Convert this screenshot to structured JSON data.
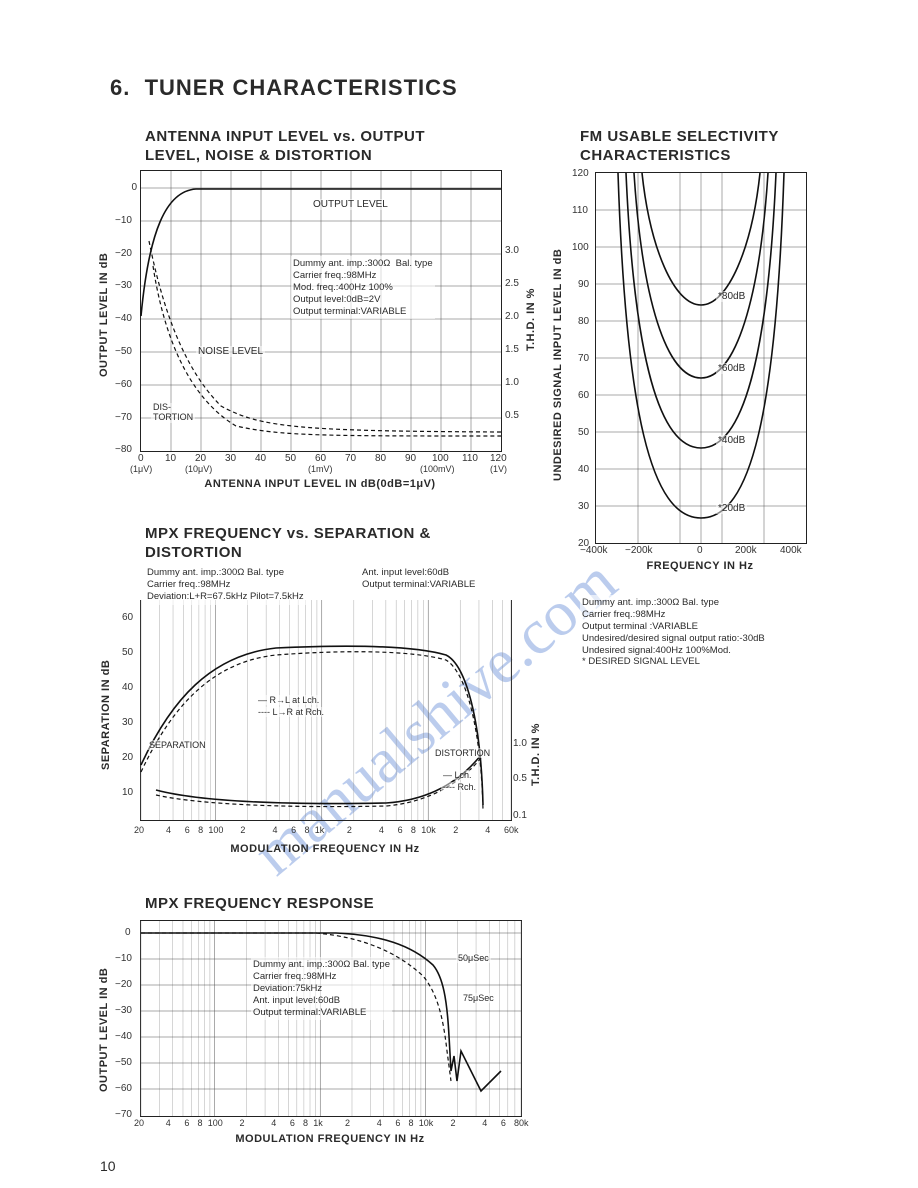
{
  "section": {
    "number": "6.",
    "title": "TUNER CHARACTERISTICS"
  },
  "page_number": "10",
  "watermark": "manualshive.com",
  "chart1": {
    "title1": "ANTENNA INPUT LEVEL vs. OUTPUT",
    "title2": "LEVEL, NOISE & DISTORTION",
    "y_label_left": "OUTPUT LEVEL IN dB",
    "y_label_right": "T.H.D. IN %",
    "x_label": "ANTENNA INPUT LEVEL IN dB(0dB=1μV)",
    "y_ticks_left": [
      "0",
      "−10",
      "−20",
      "−30",
      "−40",
      "−50",
      "−60",
      "−70",
      "−80"
    ],
    "y_ticks_right": [
      "3.0",
      "2.5",
      "2.0",
      "1.5",
      "1.0",
      "0.5"
    ],
    "x_ticks": [
      "0",
      "10",
      "20",
      "30",
      "40",
      "50",
      "60",
      "70",
      "80",
      "90",
      "100",
      "110",
      "120"
    ],
    "x_sub": [
      "(1μV)",
      "(10μV)",
      "(1mV)",
      "(100mV)",
      "(1V)"
    ],
    "label_output": "OUTPUT LEVEL",
    "label_noise": "NOISE LEVEL",
    "label_dist": "DIS-\nTORTION",
    "info": "Dummy ant. imp.:300Ω  Bal. type\nCarrier freq.:98MHz\nMod. freq.:400Hz 100%\nOutput level:0dB=2V\nOutput terminal:VARIABLE"
  },
  "chart2": {
    "title1": "FM USABLE SELECTIVITY",
    "title2": "CHARACTERISTICS",
    "y_label": "UNDESIRED SIGNAL INPUT LEVEL IN dB",
    "x_label": "FREQUENCY IN Hz",
    "y_ticks": [
      "120",
      "110",
      "100",
      "90",
      "80",
      "70",
      "60",
      "50",
      "40",
      "30",
      "20"
    ],
    "x_ticks": [
      "−400k",
      "−200k",
      "0",
      "200k",
      "400k"
    ],
    "curve_labels": [
      "*80dB",
      "*60dB",
      "*40dB",
      "*20dB"
    ],
    "info": "Dummy ant. imp.:300Ω Bal. type\nCarrier freq.:98MHz\nOutput terminal :VARIABLE\nUndesired/desired signal output ratio:-30dB\nUndesired signal:400Hz 100%Mod.\n* DESIRED SIGNAL LEVEL"
  },
  "chart3": {
    "title1": "MPX FREQUENCY vs. SEPARATION &",
    "title2": "DISTORTION",
    "y_label_left": "SEPARATION IN dB",
    "y_label_right": "T.H.D. IN %",
    "x_label": "MODULATION FREQUENCY IN Hz",
    "y_ticks_left": [
      "60",
      "50",
      "40",
      "30",
      "20",
      "10"
    ],
    "y_ticks_right": [
      "1.0",
      "0.5",
      "0.1"
    ],
    "x_ticks_decades": [
      20,
      100,
      1000,
      10000,
      60000
    ],
    "x_tick_labels": [
      "20",
      "4",
      "6",
      "8",
      "100",
      "2",
      "4",
      "6",
      "8",
      "1k",
      "2",
      "4",
      "6",
      "8",
      "10k",
      "2",
      "4",
      "60k"
    ],
    "label_sep": "SEPARATION",
    "label_dist": "DISTORTION",
    "label_rl": "R→L at Lch.",
    "label_lr": "L→R at Rch.",
    "label_lch": "Lch.",
    "label_rch": "Rch.",
    "info_left": "Dummy ant. imp.:300Ω Bal. type\nCarrier freq.:98MHz\nDeviation:L+R=67.5kHz Pilot=7.5kHz",
    "info_right": "Ant. input level:60dB\nOutput terminal:VARIABLE"
  },
  "chart4": {
    "title": "MPX FREQUENCY RESPONSE",
    "y_label": "OUTPUT LEVEL IN dB",
    "x_label": "MODULATION FREQUENCY IN Hz",
    "y_ticks": [
      "0",
      "−10",
      "−20",
      "−30",
      "−40",
      "−50",
      "−60",
      "−70"
    ],
    "x_tick_labels": [
      "20",
      "4",
      "6",
      "8",
      "100",
      "2",
      "4",
      "6",
      "8",
      "1k",
      "2",
      "4",
      "6",
      "8",
      "10k",
      "2",
      "4",
      "6",
      "80k"
    ],
    "label_50": "50μSec",
    "label_75": "75μSec",
    "info": "Dummy ant. imp.:300Ω Bal. type\nCarrier freq.:98MHz\nDeviation:75kHz\nAnt. input level:60dB\nOutput terminal:VARIABLE"
  }
}
